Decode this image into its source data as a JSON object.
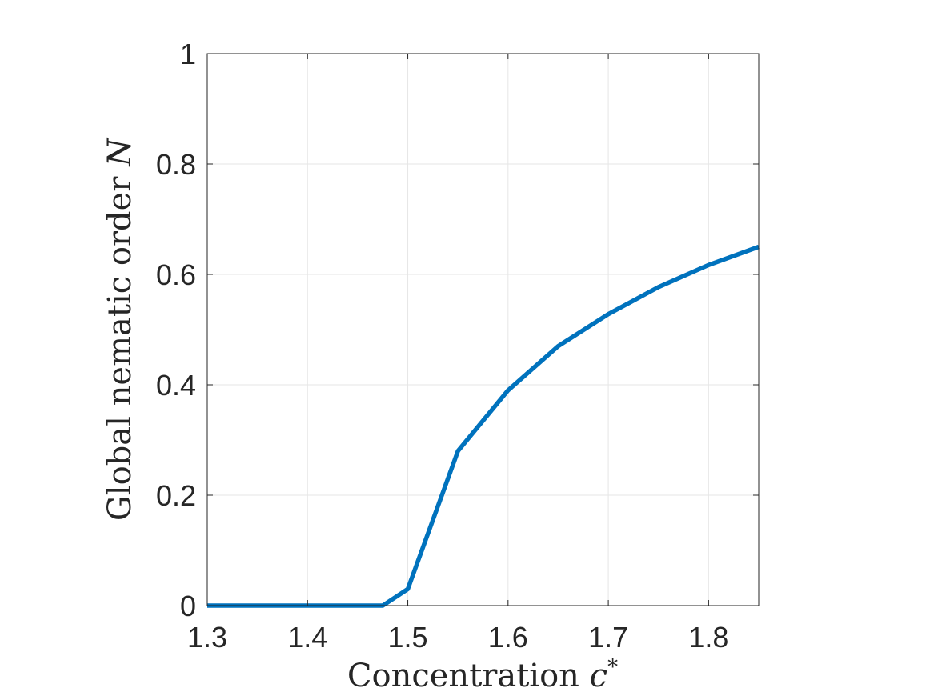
{
  "chart_data": {
    "type": "line",
    "x": [
      1.3,
      1.35,
      1.4,
      1.45,
      1.475,
      1.5,
      1.55,
      1.6,
      1.65,
      1.7,
      1.75,
      1.8,
      1.85
    ],
    "series": [
      {
        "values": [
          0,
          0,
          0,
          0,
          0,
          0.03,
          0.28,
          0.39,
          0.47,
          0.528,
          0.577,
          0.617,
          0.65
        ],
        "color": "#0072bd"
      }
    ],
    "xlim": [
      1.3,
      1.85
    ],
    "ylim": [
      0,
      1
    ],
    "xticks": [
      1.3,
      1.4,
      1.5,
      1.6,
      1.7,
      1.8
    ],
    "yticks": [
      0,
      0.2,
      0.4,
      0.6,
      0.8,
      1
    ],
    "xtick_labels": [
      "1.3",
      "1.4",
      "1.5",
      "1.6",
      "1.7",
      "1.8"
    ],
    "ytick_labels": [
      "0",
      "0.2",
      "0.4",
      "0.6",
      "0.8",
      "1"
    ],
    "xlabel_text": "Concentration ",
    "xlabel_math": "c",
    "xlabel_sup": "*",
    "ylabel_text": "Global nematic order ",
    "ylabel_math": "N",
    "grid": true,
    "box": true
  }
}
